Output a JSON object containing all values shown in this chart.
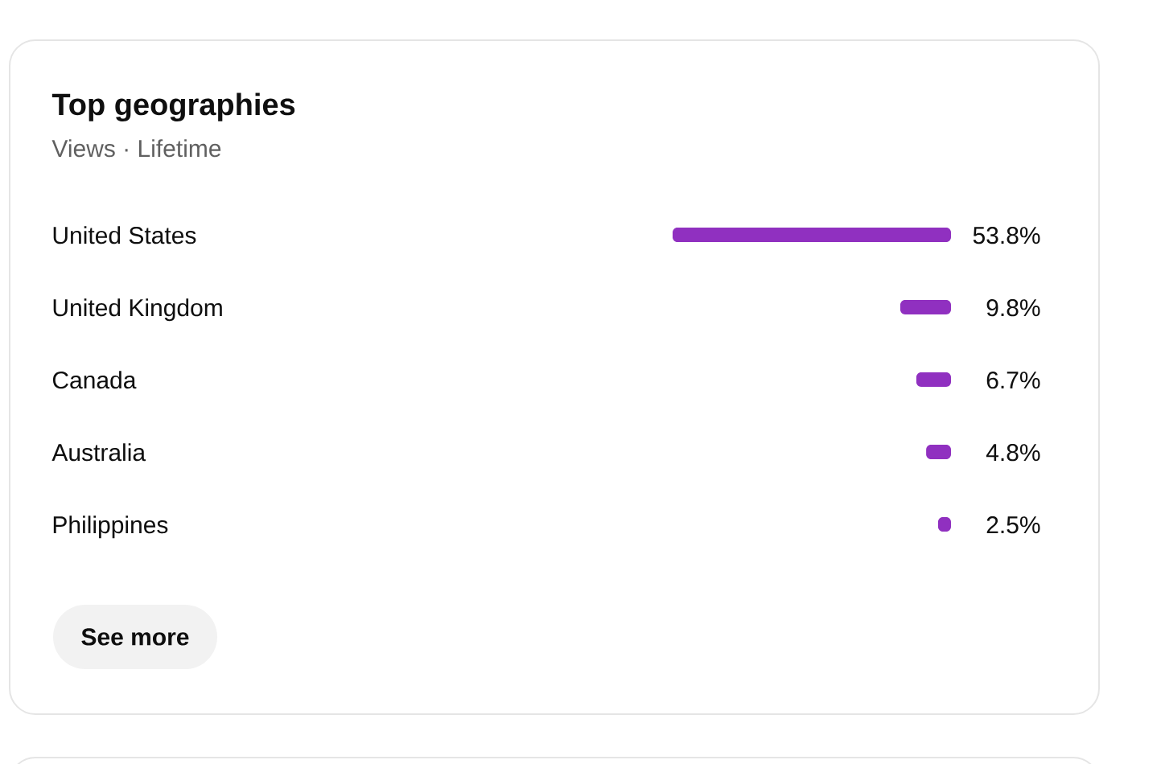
{
  "chart_data": {
    "type": "bar",
    "orientation": "horizontal",
    "title": "Top geographies",
    "subtitle": "Views · Lifetime",
    "categories": [
      "United States",
      "United Kingdom",
      "Canada",
      "Australia",
      "Philippines"
    ],
    "values": [
      53.8,
      9.8,
      6.7,
      4.8,
      2.5
    ],
    "value_labels": [
      "53.8%",
      "9.8%",
      "6.7%",
      "4.8%",
      "2.5%"
    ],
    "color": "#9030c0",
    "tick_labels": "y",
    "annotations": [
      "See more"
    ]
  }
}
